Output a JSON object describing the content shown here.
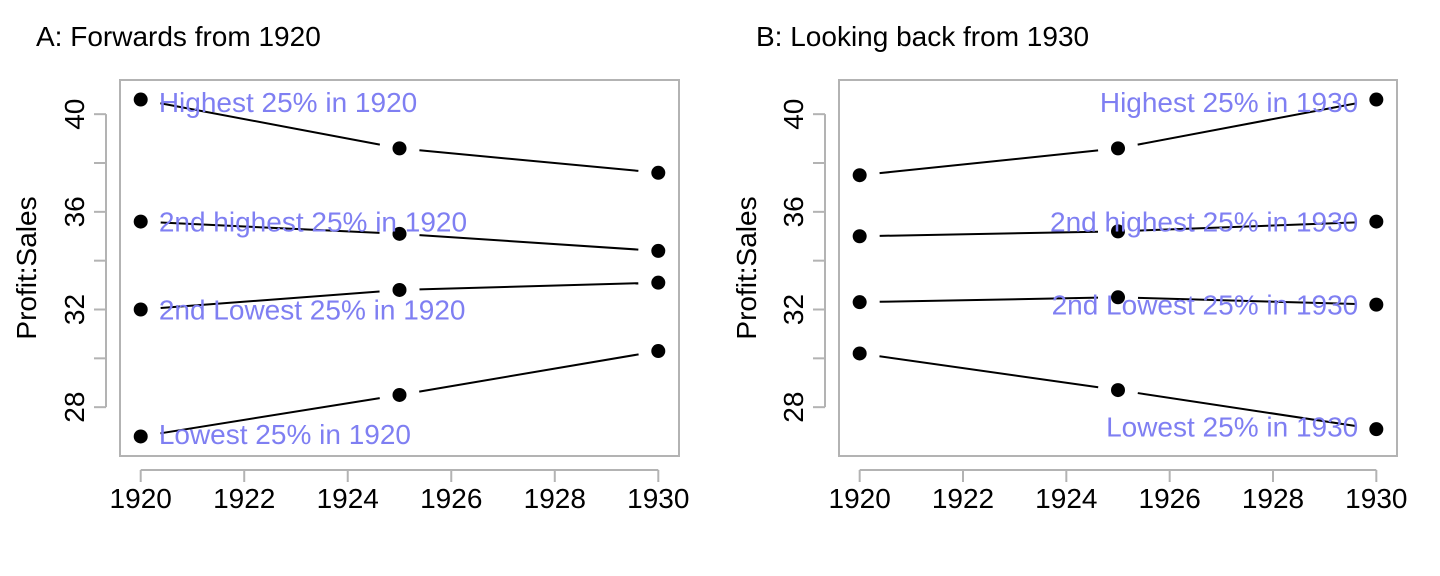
{
  "chart_data": [
    {
      "type": "line",
      "title": "A: Forwards from 1920",
      "xlabel": "",
      "ylabel": "Profit:Sales",
      "xlim": [
        1919.6,
        1930.4
      ],
      "ylim": [
        26.0,
        41.4
      ],
      "xticks": [
        1920,
        1922,
        1924,
        1926,
        1928,
        1930
      ],
      "yticks": [
        28,
        32,
        36,
        40
      ],
      "yminor_ticks": [
        30,
        34,
        38
      ],
      "label_anchor": "start",
      "label_x": 1920.35,
      "x": [
        1920,
        1925,
        1930
      ],
      "series": [
        {
          "name": "Highest 25% in 1920",
          "values": [
            40.6,
            38.6,
            37.6
          ],
          "label_y": 40.5
        },
        {
          "name": "2nd highest 25% in 1920",
          "values": [
            35.6,
            35.1,
            34.4
          ],
          "label_y": 35.6
        },
        {
          "name": "2nd Lowest 25% in 1920",
          "values": [
            32.0,
            32.8,
            33.1
          ],
          "label_y": 32.0
        },
        {
          "name": "Lowest 25% in 1920",
          "values": [
            26.8,
            28.5,
            30.3
          ],
          "label_y": 26.9
        }
      ]
    },
    {
      "type": "line",
      "title": "B: Looking back from 1930",
      "xlabel": "",
      "ylabel": "Profit:Sales",
      "xlim": [
        1919.6,
        1930.4
      ],
      "ylim": [
        26.0,
        41.4
      ],
      "xticks": [
        1920,
        1922,
        1924,
        1926,
        1928,
        1930
      ],
      "yticks": [
        28,
        32,
        36,
        40
      ],
      "yminor_ticks": [
        30,
        34,
        38
      ],
      "label_anchor": "end",
      "label_x": 1929.65,
      "x": [
        1920,
        1925,
        1930
      ],
      "series": [
        {
          "name": "Highest 25% in 1930",
          "values": [
            37.5,
            38.6,
            40.6
          ],
          "label_y": 40.5
        },
        {
          "name": "2nd highest 25% in 1930",
          "values": [
            35.0,
            35.2,
            35.6
          ],
          "label_y": 35.6
        },
        {
          "name": "2nd Lowest 25% in 1930",
          "values": [
            32.3,
            32.5,
            32.2
          ],
          "label_y": 32.2
        },
        {
          "name": "Lowest 25% in 1930",
          "values": [
            30.2,
            28.7,
            27.1
          ],
          "label_y": 27.2
        }
      ]
    }
  ],
  "colors": {
    "axis": "#b3b3b3",
    "line": "#000000",
    "point": "#000000",
    "series_label": "#7f7ff2",
    "text": "#000000"
  }
}
